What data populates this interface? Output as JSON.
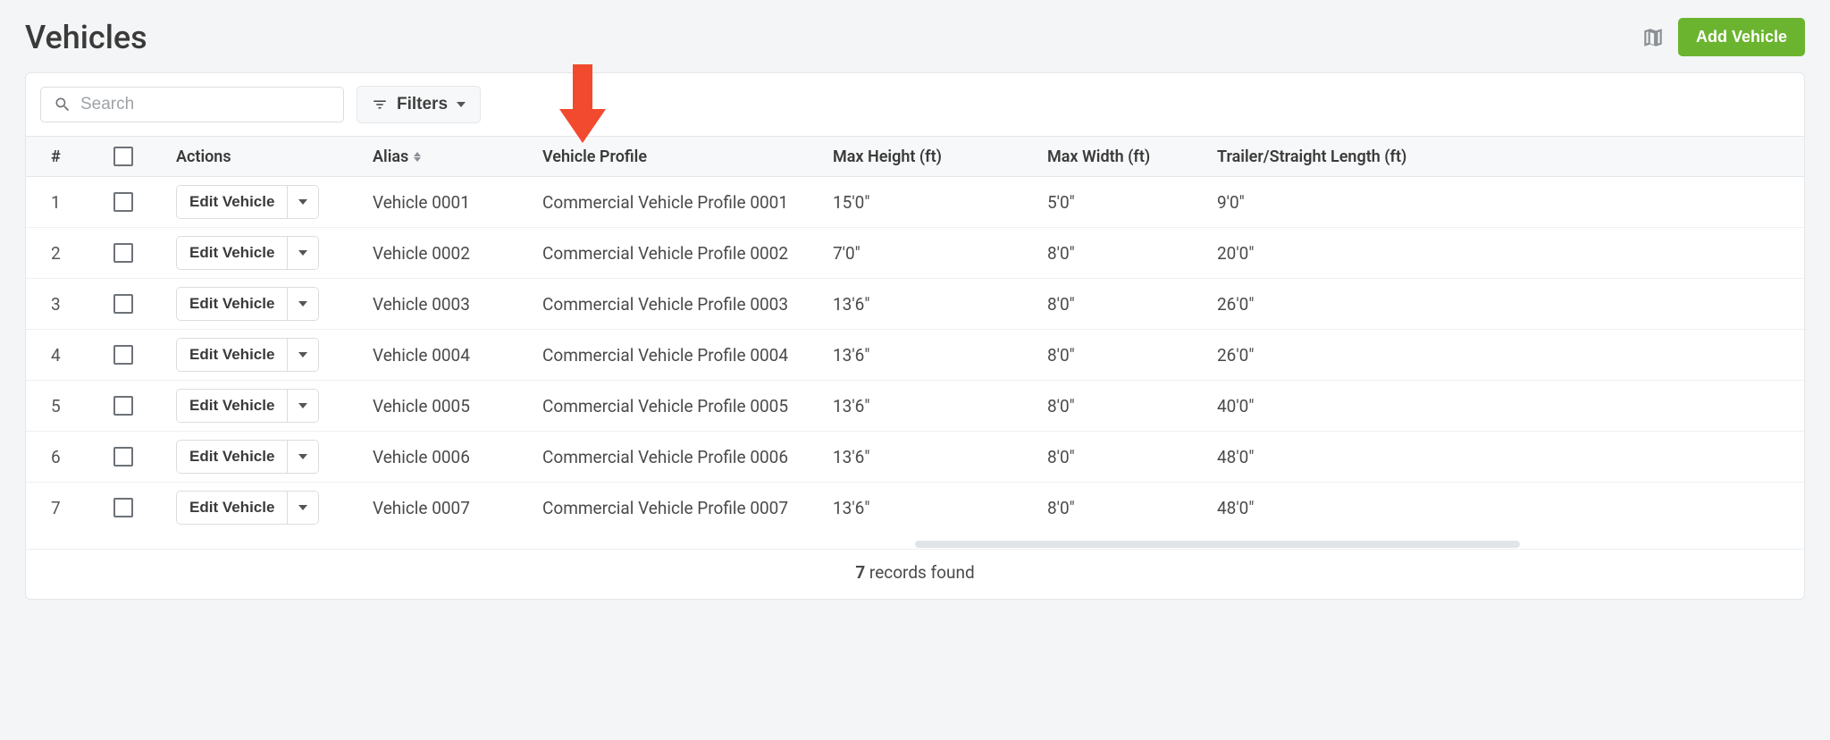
{
  "page": {
    "title": "Vehicles",
    "add_button_label": "Add Vehicle"
  },
  "toolbar": {
    "search_placeholder": "Search",
    "filters_label": "Filters"
  },
  "annotation": {
    "arrow_color": "#f14a2e"
  },
  "table": {
    "columns": {
      "num": "#",
      "actions": "Actions",
      "alias": "Alias",
      "vehicle_profile": "Vehicle Profile",
      "max_height": "Max Height (ft)",
      "max_width": "Max Width (ft)",
      "trailer_length": "Trailer/Straight Length (ft)"
    },
    "edit_label": "Edit Vehicle",
    "rows": [
      {
        "num": "1",
        "alias": "Vehicle 0001",
        "profile": "Commercial Vehicle Profile 0001",
        "max_height": "15'0\"",
        "max_width": "5'0\"",
        "trailer_length": "9'0\""
      },
      {
        "num": "2",
        "alias": "Vehicle 0002",
        "profile": "Commercial Vehicle Profile 0002",
        "max_height": "7'0\"",
        "max_width": "8'0\"",
        "trailer_length": "20'0\""
      },
      {
        "num": "3",
        "alias": "Vehicle 0003",
        "profile": "Commercial Vehicle Profile 0003",
        "max_height": "13'6\"",
        "max_width": "8'0\"",
        "trailer_length": "26'0\""
      },
      {
        "num": "4",
        "alias": "Vehicle 0004",
        "profile": "Commercial Vehicle Profile 0004",
        "max_height": "13'6\"",
        "max_width": "8'0\"",
        "trailer_length": "26'0\""
      },
      {
        "num": "5",
        "alias": "Vehicle 0005",
        "profile": "Commercial Vehicle Profile 0005",
        "max_height": "13'6\"",
        "max_width": "8'0\"",
        "trailer_length": "40'0\""
      },
      {
        "num": "6",
        "alias": "Vehicle 0006",
        "profile": "Commercial Vehicle Profile 0006",
        "max_height": "13'6\"",
        "max_width": "8'0\"",
        "trailer_length": "48'0\""
      },
      {
        "num": "7",
        "alias": "Vehicle 0007",
        "profile": "Commercial Vehicle Profile 0007",
        "max_height": "13'6\"",
        "max_width": "8'0\"",
        "trailer_length": "48'0\""
      }
    ]
  },
  "footer": {
    "count": "7",
    "suffix": " records found"
  },
  "colors": {
    "primary_button": "#6bb42f",
    "page_bg": "#f4f5f6",
    "border": "#e4e7ea",
    "header_bg": "#f7f8f9",
    "text": "#3a3a3a"
  }
}
